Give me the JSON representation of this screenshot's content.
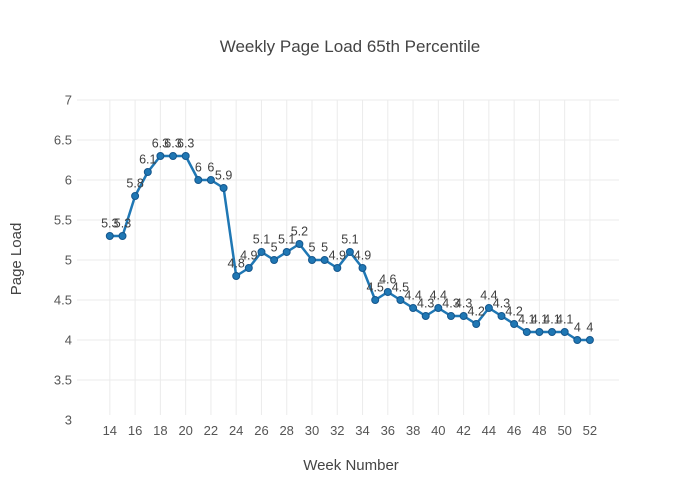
{
  "figure": {
    "background": "#ffffff"
  },
  "chart_data": {
    "type": "line",
    "title": "Weekly Page Load 65th Percentile",
    "xlabel": "Week Number",
    "ylabel": "Page Load",
    "x": [
      14,
      15,
      16,
      17,
      18,
      19,
      20,
      21,
      22,
      23,
      24,
      25,
      26,
      27,
      28,
      29,
      30,
      31,
      32,
      33,
      34,
      35,
      36,
      37,
      38,
      39,
      40,
      41,
      42,
      43,
      44,
      45,
      46,
      47,
      48,
      49,
      50,
      51,
      52
    ],
    "y": [
      5.3,
      5.3,
      5.8,
      6.1,
      6.3,
      6.3,
      6.3,
      6,
      6,
      5.9,
      4.8,
      4.9,
      5.1,
      5,
      5.1,
      5.2,
      5,
      5,
      4.9,
      5.1,
      4.9,
      4.5,
      4.6,
      4.5,
      4.4,
      4.3,
      4.4,
      4.3,
      4.3,
      4.2,
      4.4,
      4.3,
      4.2,
      4.1,
      4.1,
      4.1,
      4.1,
      4,
      4
    ],
    "point_labels": [
      "5.3",
      "5.3",
      "5.8",
      "6.1",
      "6.3",
      "6.3",
      "6.3",
      "6",
      "6",
      "5.9",
      "4.8",
      "4.9",
      "5.1",
      "5",
      "5.1",
      "5.2",
      "5",
      "5",
      "4.9",
      "5.1",
      "4.9",
      "4.5",
      "4.6",
      "4.5",
      "4.4",
      "4.3",
      "4.4",
      "4.3",
      "4.3",
      "4.2",
      "4.4",
      "4.3",
      "4.2",
      "4.1",
      "4.1",
      "4.1",
      "4.1",
      "4",
      "4"
    ],
    "xticks": [
      14,
      16,
      18,
      20,
      22,
      24,
      26,
      28,
      30,
      32,
      34,
      36,
      38,
      40,
      42,
      44,
      46,
      48,
      50,
      52
    ],
    "yticks": [
      3,
      3.5,
      4,
      4.5,
      5,
      5.5,
      6,
      6.5,
      7
    ],
    "xlim": [
      11.4,
      54.3
    ],
    "ylim": [
      3,
      7
    ],
    "grid": true,
    "legend": false,
    "marker_mode": "lines+markers+text",
    "colors": {
      "line": "#1f77b4",
      "marker": "#1f77b4",
      "marker_edge": "#15568c",
      "grid": "#ebebeb",
      "title_text": "#444444",
      "tick_text": "#555555",
      "point_label_text": "#3f3f3f",
      "background": "#ffffff"
    }
  }
}
